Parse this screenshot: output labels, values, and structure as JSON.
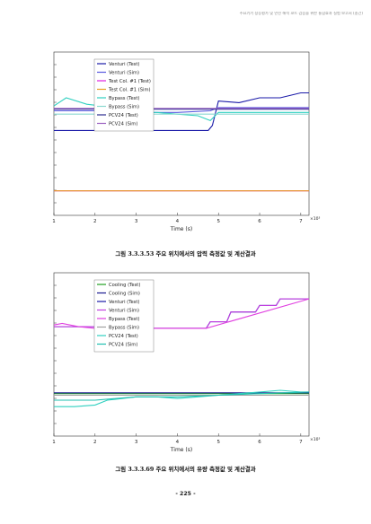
{
  "header": {
    "text": "주요기기 성능평가 및 안전 해석 코드 검증을 위한 통합효과 실험 보고서 (중간)"
  },
  "figures": [
    {
      "caption": "그림 3.3.3.53 주요 위치에서의 압력 측정값 및 계산결과",
      "chart_data": {
        "type": "line",
        "xlabel": "Time (s)",
        "xlim": [
          1,
          7.2
        ],
        "xticks": [
          1,
          2,
          3,
          4,
          5,
          6,
          7
        ],
        "x_multiplier": "×10³",
        "series": [
          {
            "name": "Venturi (Test)",
            "color": "#1a1aa8",
            "x": [
              1.0,
              1.5,
              2.0,
              2.5,
              3.0,
              3.5,
              4.0,
              4.5,
              4.75,
              4.85,
              5.0,
              5.5,
              6.0,
              6.5,
              7.0,
              7.2
            ],
            "y": [
              0.52,
              0.52,
              0.52,
              0.52,
              0.52,
              0.52,
              0.52,
              0.52,
              0.52,
              0.55,
              0.7,
              0.69,
              0.72,
              0.72,
              0.75,
              0.75
            ]
          },
          {
            "name": "Venturi (Sim)",
            "color": "#5a5ae0",
            "x": [
              1.0,
              2.0,
              3.0,
              4.0,
              4.8,
              5.0,
              6.0,
              7.2
            ],
            "y": [
              0.64,
              0.64,
              0.63,
              0.63,
              0.64,
              0.66,
              0.66,
              0.66
            ]
          },
          {
            "name": "Test Col. #1 (Test)",
            "color": "#e020e0",
            "x": [
              1.0,
              2.0,
              3.0,
              4.0,
              5.0,
              6.0,
              7.0,
              7.2
            ],
            "y": [
              0.15,
              0.15,
              0.15,
              0.15,
              0.15,
              0.15,
              0.15,
              0.15
            ]
          },
          {
            "name": "Test Col. #1 (Sim)",
            "color": "#e8a020",
            "x": [
              1.0,
              2.0,
              3.0,
              4.0,
              5.0,
              6.0,
              7.2
            ],
            "y": [
              0.15,
              0.15,
              0.15,
              0.15,
              0.15,
              0.15,
              0.15
            ]
          },
          {
            "name": "Bypass (Test)",
            "color": "#30d0c0",
            "x": [
              1.0,
              1.3,
              1.8,
              2.5,
              3.0,
              3.5,
              4.0,
              4.5,
              4.8,
              5.0,
              5.5,
              6.0,
              6.5,
              7.0,
              7.2
            ],
            "y": [
              0.67,
              0.72,
              0.68,
              0.66,
              0.63,
              0.63,
              0.62,
              0.61,
              0.58,
              0.63,
              0.63,
              0.63,
              0.63,
              0.63,
              0.63
            ]
          },
          {
            "name": "Bypass (Sim)",
            "color": "#8ad8d0",
            "x": [
              1.0,
              2.0,
              3.0,
              4.0,
              5.0,
              6.0,
              7.2
            ],
            "y": [
              0.62,
              0.62,
              0.62,
              0.62,
              0.62,
              0.62,
              0.62
            ]
          },
          {
            "name": "PCV24 (Test)",
            "color": "#2a2a90",
            "x": [
              1.0,
              2.0,
              3.0,
              4.0,
              5.0,
              6.0,
              7.2
            ],
            "y": [
              0.65,
              0.65,
              0.65,
              0.65,
              0.65,
              0.65,
              0.65
            ]
          },
          {
            "name": "PCV24 (Sim)",
            "color": "#9a60c0",
            "x": [
              1.0,
              2.0,
              3.0,
              4.0,
              5.0,
              6.0,
              7.2
            ],
            "y": [
              0.655,
              0.655,
              0.655,
              0.655,
              0.655,
              0.655,
              0.655
            ]
          }
        ]
      }
    },
    {
      "caption": "그림 3.3.3.69 주요 위치에서의 유량 측정값 및 계산결과",
      "chart_data": {
        "type": "line",
        "xlabel": "Time (s)",
        "xlim": [
          1,
          7.2
        ],
        "xticks": [
          1,
          2,
          3,
          4,
          5,
          6,
          7
        ],
        "x_multiplier": "×10³",
        "series": [
          {
            "name": "Cooling (Test)",
            "color": "#20a020",
            "x": [
              1.0,
              2.0,
              3.0,
              4.0,
              5.0,
              6.0,
              7.2
            ],
            "y": [
              0.26,
              0.26,
              0.26,
              0.26,
              0.26,
              0.26,
              0.26
            ]
          },
          {
            "name": "Cooling (Sim)",
            "color": "#1a1a90",
            "x": [
              1.0,
              2.0,
              3.0,
              4.0,
              5.0,
              6.0,
              7.2
            ],
            "y": [
              0.265,
              0.265,
              0.265,
              0.265,
              0.265,
              0.265,
              0.265
            ]
          },
          {
            "name": "Venturi (Test)",
            "color": "#1a1aa8",
            "x": [
              1.0,
              1.5,
              2.0,
              3.0,
              4.0,
              4.7,
              4.8,
              5.2,
              5.3,
              5.9,
              6.0,
              6.4,
              6.5,
              7.2
            ],
            "y": [
              0.67,
              0.67,
              0.67,
              0.66,
              0.66,
              0.66,
              0.7,
              0.7,
              0.76,
              0.76,
              0.8,
              0.8,
              0.84,
              0.84
            ]
          },
          {
            "name": "Venturi (Sim)",
            "color": "#c040e0",
            "x": [
              1.0,
              1.5,
              2.0,
              3.0,
              4.0,
              4.7,
              4.8,
              5.2,
              5.3,
              5.9,
              6.0,
              6.4,
              6.5,
              7.2
            ],
            "y": [
              0.67,
              0.67,
              0.67,
              0.66,
              0.66,
              0.66,
              0.7,
              0.7,
              0.76,
              0.76,
              0.8,
              0.8,
              0.84,
              0.84
            ]
          },
          {
            "name": "Bypass (Test)",
            "color": "#e040e0",
            "x": [
              1.0,
              1.2,
              1.6,
              2.0,
              3.0,
              4.0,
              4.7,
              7.2
            ],
            "y": [
              0.68,
              0.69,
              0.67,
              0.66,
              0.66,
              0.66,
              0.66,
              0.84
            ]
          },
          {
            "name": "Bypass (Sim)",
            "color": "#a0a0a0",
            "x": [
              1.0,
              2.0,
              3.0,
              4.0,
              5.0,
              6.0,
              7.2
            ],
            "y": [
              0.25,
              0.25,
              0.25,
              0.25,
              0.25,
              0.25,
              0.25
            ]
          },
          {
            "name": "PCV24 (Test)",
            "color": "#30d0c0",
            "x": [
              1.0,
              1.5,
              2.0,
              2.3,
              3.0,
              3.5,
              4.0,
              4.5,
              5.0,
              5.5,
              6.0,
              6.5,
              7.0,
              7.2
            ],
            "y": [
              0.18,
              0.18,
              0.19,
              0.22,
              0.24,
              0.24,
              0.23,
              0.24,
              0.25,
              0.26,
              0.27,
              0.28,
              0.27,
              0.27
            ]
          },
          {
            "name": "PCV24 (Sim)",
            "color": "#20c0b0",
            "x": [
              1.0,
              2.0,
              3.0,
              4.0,
              5.0,
              6.0,
              7.2
            ],
            "y": [
              0.22,
              0.22,
              0.24,
              0.24,
              0.25,
              0.26,
              0.27
            ]
          }
        ]
      }
    }
  ],
  "page_number": "- 225 -"
}
